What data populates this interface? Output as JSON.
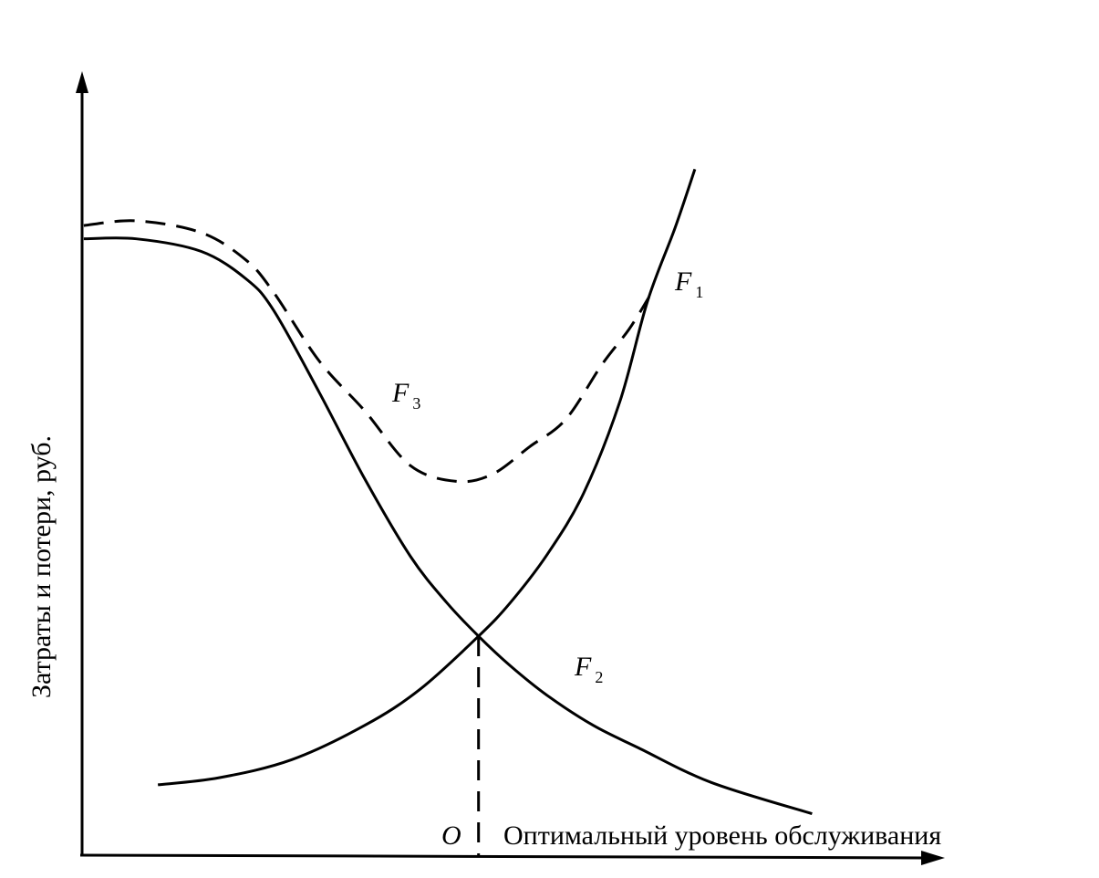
{
  "chart_data": {
    "type": "line",
    "title": "",
    "xlabel": "Оптимальный уровень обслуживания",
    "ylabel": "Затраты и потери, руб.",
    "xlim": [
      0,
      100
    ],
    "ylim": [
      0,
      100
    ],
    "grid": false,
    "ticks": false,
    "optimum": {
      "label": "O",
      "x": 46.0,
      "style": "dashed"
    },
    "series": [
      {
        "name": "F",
        "subscript": "1",
        "style": "solid",
        "x": [
          8.8,
          15.9,
          24.3,
          32.8,
          39.2,
          46.0,
          49.7,
          54.0,
          58.2,
          62.4,
          65.6,
          68.8,
          71.1
        ],
        "y": [
          9.0,
          9.9,
          12.2,
          16.6,
          21.2,
          28.0,
          32.3,
          38.5,
          46.3,
          58.0,
          70.8,
          80.2,
          87.7
        ]
      },
      {
        "name": "F",
        "subscript": "2",
        "style": "solid",
        "x": [
          0.2,
          6.3,
          13.8,
          19.0,
          22.2,
          27.5,
          32.8,
          38.1,
          42.3,
          46.0,
          49.7,
          54.0,
          59.3,
          64.6,
          73.0,
          84.7
        ],
        "y": [
          78.8,
          78.8,
          77.2,
          73.7,
          69.7,
          59.2,
          48.1,
          38.2,
          32.3,
          28.0,
          24.2,
          20.4,
          16.6,
          13.7,
          9.3,
          5.3
        ]
      },
      {
        "name": "F",
        "subscript": "3",
        "style": "dashed",
        "x": [
          0.2,
          6.3,
          13.8,
          19.0,
          22.2,
          27.5,
          32.8,
          38.1,
          43.4,
          47.6,
          51.9,
          56.1,
          60.3,
          63.5,
          65.8
        ],
        "y": [
          80.5,
          81.1,
          79.6,
          76.1,
          72.0,
          63.2,
          56.8,
          49.8,
          47.8,
          48.7,
          52.2,
          55.7,
          62.7,
          67.3,
          71.4
        ]
      }
    ]
  }
}
